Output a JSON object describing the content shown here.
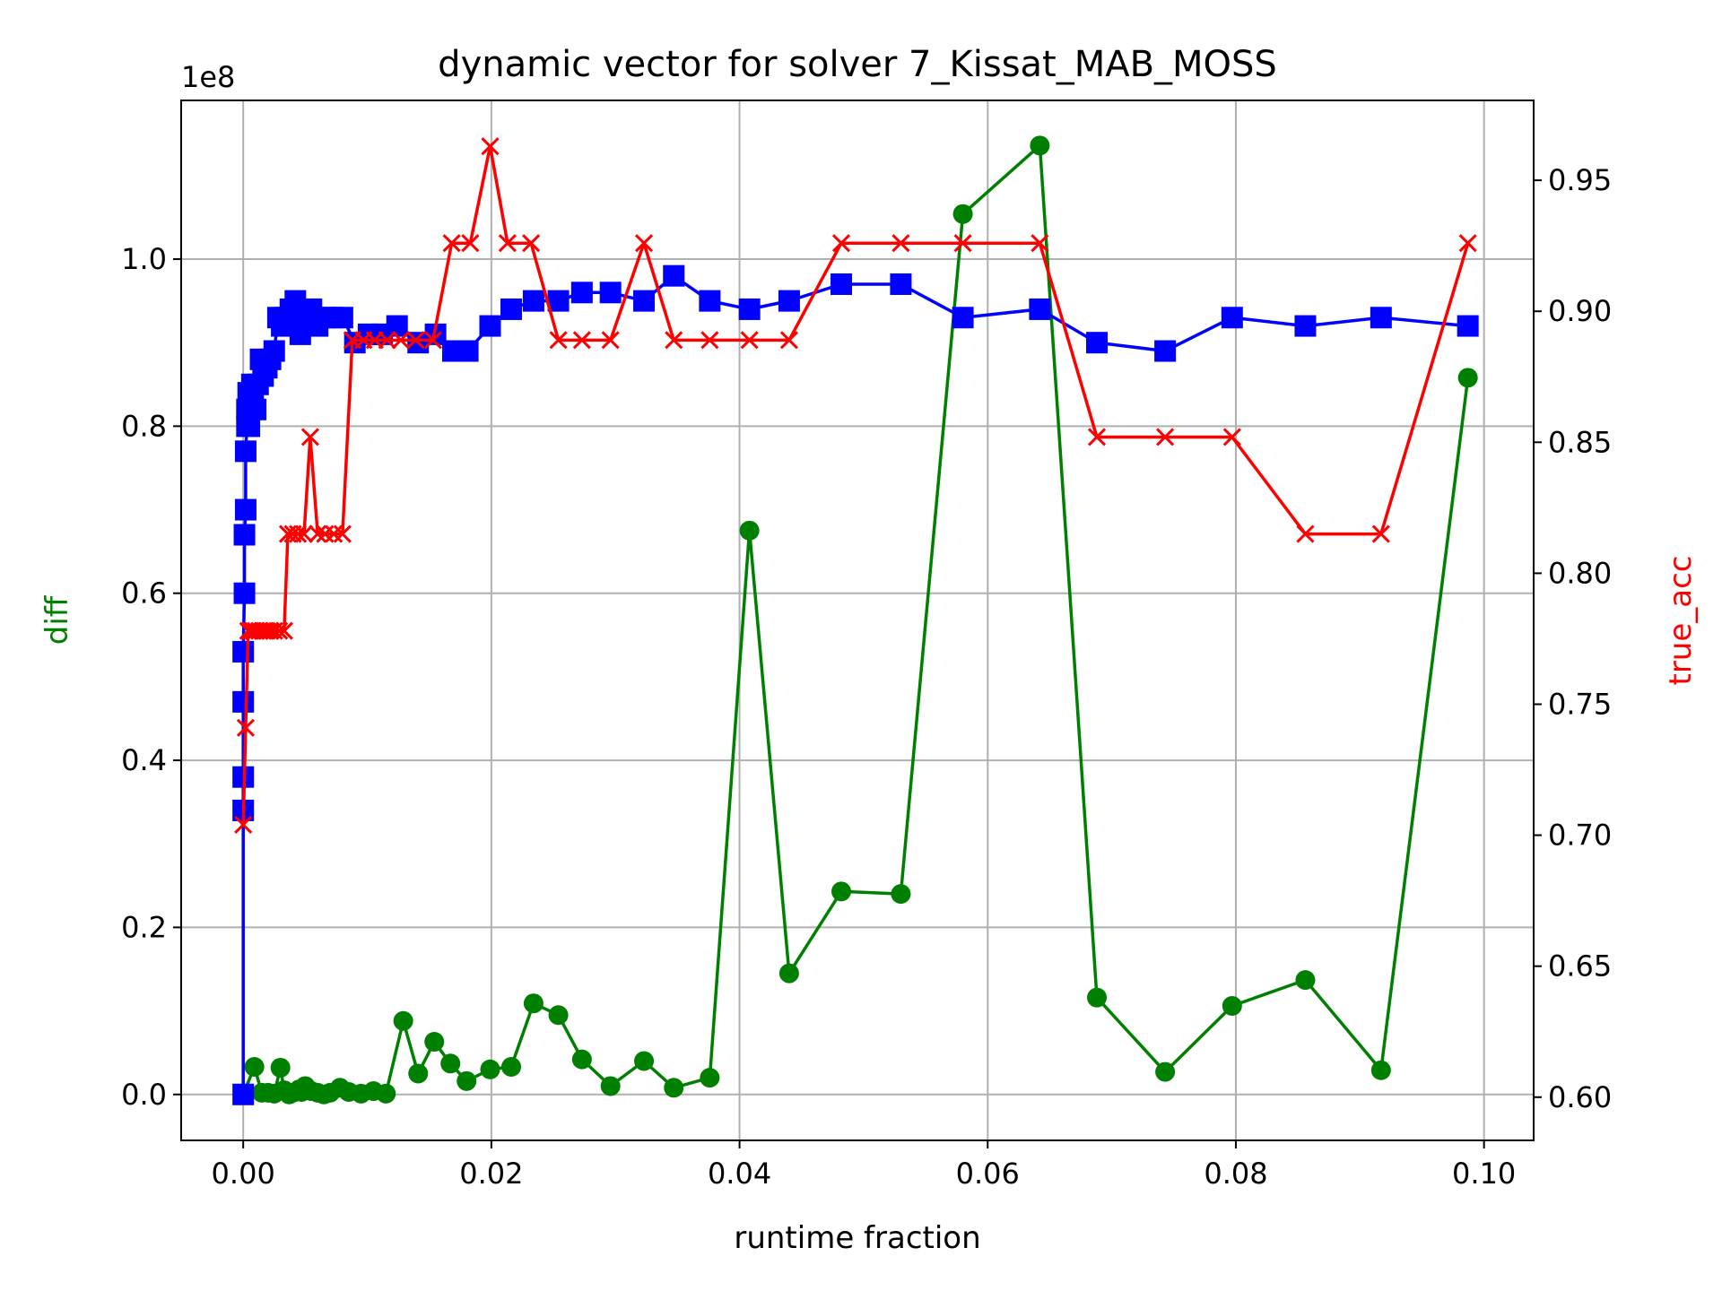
{
  "chart_data": {
    "type": "line",
    "title": "dynamic vector for solver 7_Kissat_MAB_MOSS",
    "xlabel": "runtime fraction",
    "ylabel_left": "diff",
    "ylabel_right": "true_acc",
    "y_offset_label": "1e8",
    "xlim": [
      -0.005,
      0.104
    ],
    "ylim_left": [
      -0.055,
      1.19
    ],
    "ylim_right": [
      0.5835,
      0.9805
    ],
    "x_ticks": [
      0.0,
      0.02,
      0.04,
      0.06,
      0.08,
      0.1
    ],
    "x_tick_labels": [
      "0.00",
      "0.02",
      "0.04",
      "0.06",
      "0.08",
      "0.10"
    ],
    "y_left_ticks": [
      0.0,
      0.2,
      0.4,
      0.6,
      0.8,
      1.0
    ],
    "y_left_tick_labels": [
      "0.0",
      "0.2",
      "0.4",
      "0.6",
      "0.8",
      "1.0"
    ],
    "y_right_ticks": [
      0.6,
      0.65,
      0.7,
      0.75,
      0.8,
      0.85,
      0.9,
      0.95
    ],
    "y_right_tick_labels": [
      "0.60",
      "0.65",
      "0.70",
      "0.75",
      "0.80",
      "0.85",
      "0.90",
      "0.95"
    ],
    "grid": true,
    "colors": {
      "green": "#008000",
      "blue": "#0000ff",
      "red": "#ff0000",
      "grid": "#b0b0b0"
    },
    "series": [
      {
        "axis": "left",
        "color": "#008000",
        "marker": "circle",
        "x": [
          0.0,
          0.0009,
          0.0015,
          0.002,
          0.0025,
          0.003,
          0.0033,
          0.0037,
          0.004,
          0.0045,
          0.0047,
          0.005,
          0.0055,
          0.006,
          0.0065,
          0.007,
          0.0078,
          0.0085,
          0.0095,
          0.0105,
          0.0115,
          0.0129,
          0.0141,
          0.0154,
          0.0167,
          0.018,
          0.0199,
          0.0216,
          0.0234,
          0.0254,
          0.0273,
          0.0296,
          0.0323,
          0.0347,
          0.0376,
          0.0408,
          0.044,
          0.0482,
          0.053,
          0.058,
          0.0642,
          0.0688,
          0.0743,
          0.0797,
          0.0856,
          0.0917,
          0.0987
        ],
        "y": [
          0.0,
          0.033,
          0.002,
          0.002,
          0.001,
          0.032,
          0.005,
          0.0,
          0.002,
          0.006,
          0.003,
          0.01,
          0.004,
          0.002,
          0.0,
          0.002,
          0.008,
          0.003,
          0.001,
          0.004,
          0.001,
          0.088,
          0.025,
          0.063,
          0.037,
          0.016,
          0.03,
          0.033,
          0.109,
          0.095,
          0.042,
          0.01,
          0.04,
          0.008,
          0.02,
          0.675,
          0.145,
          0.243,
          0.24,
          1.054,
          1.136,
          0.116,
          0.027,
          0.106,
          0.137,
          0.029,
          0.858
        ]
      },
      {
        "axis": "left",
        "color": "#0000ff",
        "marker": "square",
        "x": [
          0.0,
          0.0,
          0.0,
          0.0,
          0.0,
          0.0001,
          0.0001,
          0.0002,
          0.0002,
          0.0003,
          0.0003,
          0.0004,
          0.0005,
          0.0006,
          0.0007,
          0.0008,
          0.001,
          0.0012,
          0.0014,
          0.0016,
          0.0019,
          0.0022,
          0.0025,
          0.0028,
          0.0031,
          0.0034,
          0.0038,
          0.0042,
          0.0046,
          0.005,
          0.0055,
          0.006,
          0.0066,
          0.0072,
          0.008,
          0.009,
          0.0101,
          0.0112,
          0.0124,
          0.0141,
          0.0155,
          0.0169,
          0.0181,
          0.0199,
          0.0216,
          0.0234,
          0.0254,
          0.0273,
          0.0296,
          0.0323,
          0.0347,
          0.0376,
          0.0408,
          0.044,
          0.0482,
          0.053,
          0.058,
          0.0642,
          0.0688,
          0.0743,
          0.0797,
          0.0856,
          0.0917,
          0.0987
        ],
        "y": [
          0.0,
          0.34,
          0.38,
          0.47,
          0.53,
          0.6,
          0.67,
          0.7,
          0.77,
          0.8,
          0.82,
          0.84,
          0.8,
          0.82,
          0.85,
          0.83,
          0.82,
          0.85,
          0.88,
          0.86,
          0.87,
          0.88,
          0.89,
          0.93,
          0.92,
          0.93,
          0.94,
          0.95,
          0.91,
          0.93,
          0.94,
          0.92,
          0.93,
          0.93,
          0.93,
          0.9,
          0.91,
          0.91,
          0.92,
          0.9,
          0.91,
          0.89,
          0.89,
          0.92,
          0.94,
          0.95,
          0.95,
          0.96,
          0.96,
          0.95,
          0.98,
          0.95,
          0.94,
          0.95,
          0.97,
          0.97,
          0.93,
          0.94,
          0.9,
          0.89,
          0.93,
          0.92,
          0.93,
          0.92
        ]
      },
      {
        "axis": "right",
        "color": "#ff0000",
        "marker": "x",
        "x": [
          0.0,
          0.0002,
          0.0004,
          0.0006,
          0.0008,
          0.001,
          0.0013,
          0.0016,
          0.0019,
          0.0022,
          0.0025,
          0.0029,
          0.0033,
          0.0036,
          0.004,
          0.0044,
          0.0049,
          0.0054,
          0.006,
          0.0066,
          0.0073,
          0.008,
          0.0088,
          0.0097,
          0.0106,
          0.0116,
          0.0127,
          0.0139,
          0.0153,
          0.0168,
          0.0183,
          0.0199,
          0.0213,
          0.0232,
          0.0254,
          0.0273,
          0.0296,
          0.0323,
          0.0347,
          0.0376,
          0.0408,
          0.044,
          0.0482,
          0.053,
          0.058,
          0.0642,
          0.0688,
          0.0743,
          0.0797,
          0.0856,
          0.0917,
          0.0987
        ],
        "y": [
          0.704,
          0.741,
          0.778,
          0.778,
          0.778,
          0.778,
          0.778,
          0.778,
          0.778,
          0.778,
          0.778,
          0.778,
          0.778,
          0.815,
          0.815,
          0.815,
          0.815,
          0.852,
          0.815,
          0.815,
          0.815,
          0.815,
          0.889,
          0.889,
          0.889,
          0.889,
          0.889,
          0.889,
          0.889,
          0.926,
          0.926,
          0.963,
          0.926,
          0.926,
          0.889,
          0.889,
          0.889,
          0.926,
          0.889,
          0.889,
          0.889,
          0.889,
          0.926,
          0.926,
          0.926,
          0.926,
          0.852,
          0.852,
          0.852,
          0.815,
          0.815,
          0.926
        ]
      }
    ]
  }
}
